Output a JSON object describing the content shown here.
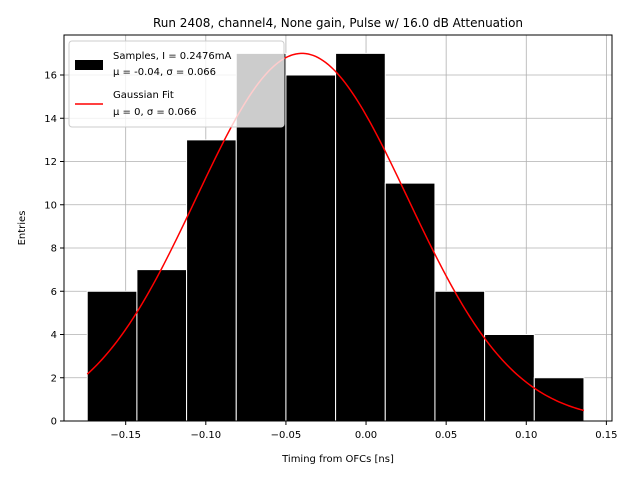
{
  "chart_data": {
    "type": "bar",
    "title": "Run 2408, channel4, None gain, Pulse w/ 16.0 dB Attenuation",
    "xlabel": "Timing from OFCs [ns]",
    "ylabel": "Entries",
    "xlim": [
      -0.1885,
      0.1535
    ],
    "ylim": [
      0,
      17.85
    ],
    "xticks": [
      -0.15,
      -0.1,
      -0.05,
      0.0,
      0.05,
      0.1,
      0.15
    ],
    "xtick_labels": [
      "−0.15",
      "−0.10",
      "−0.05",
      "0.00",
      "0.05",
      "0.10",
      "0.15"
    ],
    "yticks": [
      0,
      2,
      4,
      6,
      8,
      10,
      12,
      14,
      16
    ],
    "ytick_labels": [
      "0",
      "2",
      "4",
      "6",
      "8",
      "10",
      "12",
      "14",
      "16"
    ],
    "grid": true,
    "legend_position": "top-left",
    "histogram": {
      "name": "Samples, I = 0.2476mA",
      "stats_label": "μ = -0.04, σ = 0.066",
      "color": "#000000",
      "edge_color": "#ffffff",
      "bin_edges": [
        -0.174,
        -0.143,
        -0.112,
        -0.081,
        -0.05,
        -0.019,
        0.012,
        0.043,
        0.074,
        0.105,
        0.136
      ],
      "counts": [
        6,
        7,
        13,
        17,
        16,
        17,
        11,
        6,
        4,
        2
      ]
    },
    "fit": {
      "name": "Gaussian Fit",
      "stats_label": "μ = 0, σ = 0.066",
      "color": "#ff0000",
      "mu": -0.04,
      "sigma": 0.066,
      "amplitude": 17.0,
      "x_range": [
        -0.174,
        0.136
      ]
    }
  }
}
